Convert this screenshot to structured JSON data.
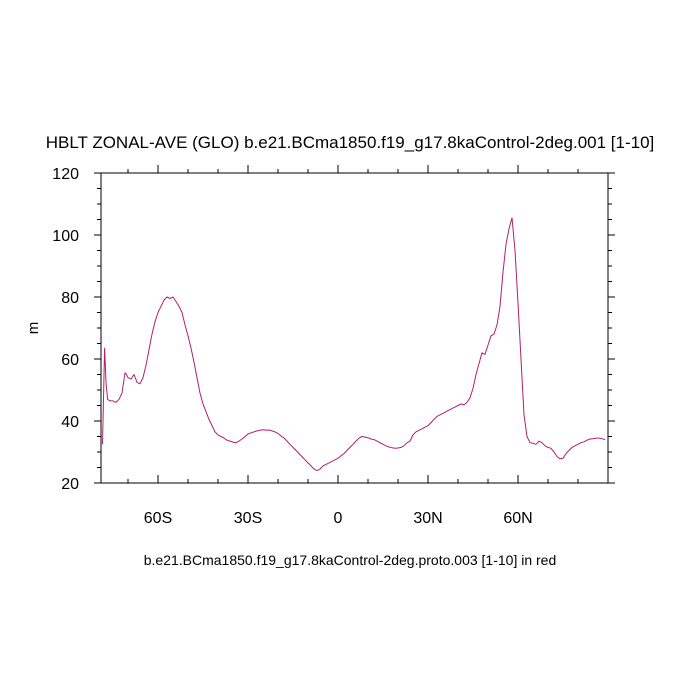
{
  "chart_data": {
    "type": "line",
    "title": "HBLT ZONAL-AVE (GLO) b.e21.BCma1850.f19_g17.8kaControl-2deg.001 [1-10]",
    "xlabel": "",
    "ylabel": "m",
    "xlim": [
      -79,
      90
    ],
    "ylim": [
      20,
      120
    ],
    "x_ticks": [
      {
        "value": -60,
        "label": "60S"
      },
      {
        "value": -30,
        "label": "30S"
      },
      {
        "value": 0,
        "label": "0"
      },
      {
        "value": 30,
        "label": "30N"
      },
      {
        "value": 60,
        "label": "60N"
      }
    ],
    "y_ticks": [
      {
        "value": 20,
        "label": "20"
      },
      {
        "value": 40,
        "label": "40"
      },
      {
        "value": 60,
        "label": "60"
      },
      {
        "value": 80,
        "label": "80"
      },
      {
        "value": 100,
        "label": "100"
      },
      {
        "value": 120,
        "label": "120"
      }
    ],
    "grid": false,
    "series": [
      {
        "color": "#b0206a",
        "x": [
          -78.5,
          -77.8,
          -77.3,
          -76.8,
          -76,
          -75,
          -74,
          -73,
          -72,
          -71,
          -70.5,
          -70,
          -69,
          -68,
          -67,
          -66,
          -65,
          -64,
          -63,
          -62,
          -61,
          -60,
          -59,
          -58,
          -57,
          -56,
          -55,
          -54,
          -53,
          -52,
          -51,
          -50,
          -49,
          -48,
          -47,
          -46,
          -45,
          -44,
          -43,
          -42,
          -41,
          -40,
          -39,
          -38,
          -37,
          -36,
          -35,
          -34,
          -33,
          -32,
          -31,
          -30,
          -29,
          -28,
          -27,
          -26,
          -25,
          -24,
          -23,
          -22,
          -21,
          -20,
          -19,
          -18,
          -17,
          -16,
          -15,
          -14,
          -13,
          -12,
          -11,
          -10,
          -9,
          -8,
          -7,
          -6,
          -5,
          -4,
          -3,
          -2,
          -1,
          0,
          1,
          2,
          3,
          4,
          5,
          6,
          7,
          8,
          9,
          10,
          11,
          12,
          13,
          14,
          15,
          16,
          17,
          18,
          19,
          20,
          21,
          22,
          23,
          24,
          25,
          26,
          27,
          28,
          29,
          30,
          31,
          32,
          33,
          34,
          35,
          36,
          37,
          38,
          39,
          40,
          41,
          42,
          43,
          44,
          45,
          46,
          47,
          48,
          49,
          50,
          51,
          52,
          53,
          54,
          55,
          56,
          57,
          58,
          59,
          60,
          61,
          62,
          63,
          64,
          65,
          66,
          67,
          68,
          69,
          70,
          71,
          72,
          73,
          74,
          75,
          76,
          77,
          78,
          79,
          80,
          81,
          82,
          83,
          84,
          85,
          86,
          87,
          88,
          89
        ],
        "values": [
          32.5,
          63.5,
          52,
          47,
          46.5,
          46.5,
          46,
          47,
          49,
          55.5,
          55,
          54,
          53.5,
          55,
          52.5,
          52,
          54,
          58,
          63,
          68,
          72,
          75,
          77,
          79,
          80,
          79.5,
          80,
          78.5,
          77,
          75,
          71,
          67.5,
          63.5,
          59,
          54,
          49,
          45.5,
          43,
          40.5,
          38.5,
          36.5,
          35.5,
          35,
          34.5,
          33.8,
          33.5,
          33.2,
          33,
          33.5,
          34.2,
          35,
          35.8,
          36.2,
          36.5,
          36.8,
          37,
          37.2,
          37,
          37.1,
          36.8,
          36.5,
          36,
          35.2,
          34.5,
          33.5,
          32.5,
          31.5,
          30.5,
          29.5,
          28.5,
          27.5,
          26.5,
          25.5,
          24.5,
          24,
          24.5,
          25.5,
          26,
          26.5,
          27,
          27.5,
          28,
          28.8,
          29.5,
          30.5,
          31.5,
          32.5,
          33.5,
          34.5,
          35,
          34.8,
          34.6,
          34.2,
          34,
          33.5,
          33,
          32.5,
          32,
          31.6,
          31.4,
          31.2,
          31.3,
          31.5,
          32,
          33,
          33.5,
          35.5,
          36.5,
          37,
          37.5,
          38,
          38.5,
          39.5,
          40.5,
          41.5,
          42,
          42.5,
          43,
          43.5,
          44,
          44.5,
          45,
          45.5,
          45.2,
          46,
          47.5,
          50.5,
          55,
          58.5,
          62,
          61.5,
          64.5,
          67.5,
          68,
          71,
          77,
          88,
          97,
          102,
          105.5,
          95,
          78,
          60,
          42,
          35,
          33,
          32.8,
          32.5,
          33.5,
          33,
          32,
          31.5,
          31.2,
          30,
          28.5,
          27.8,
          28,
          29.5,
          30.5,
          31.5,
          32,
          32.5,
          33,
          33.3,
          33.8,
          34.2,
          34.3,
          34.5,
          34.5,
          34.3,
          34
        ]
      }
    ]
  },
  "footer_text": "b.e21.BCma1850.f19_g17.8kaControl-2deg.proto.003 [1-10] in red"
}
